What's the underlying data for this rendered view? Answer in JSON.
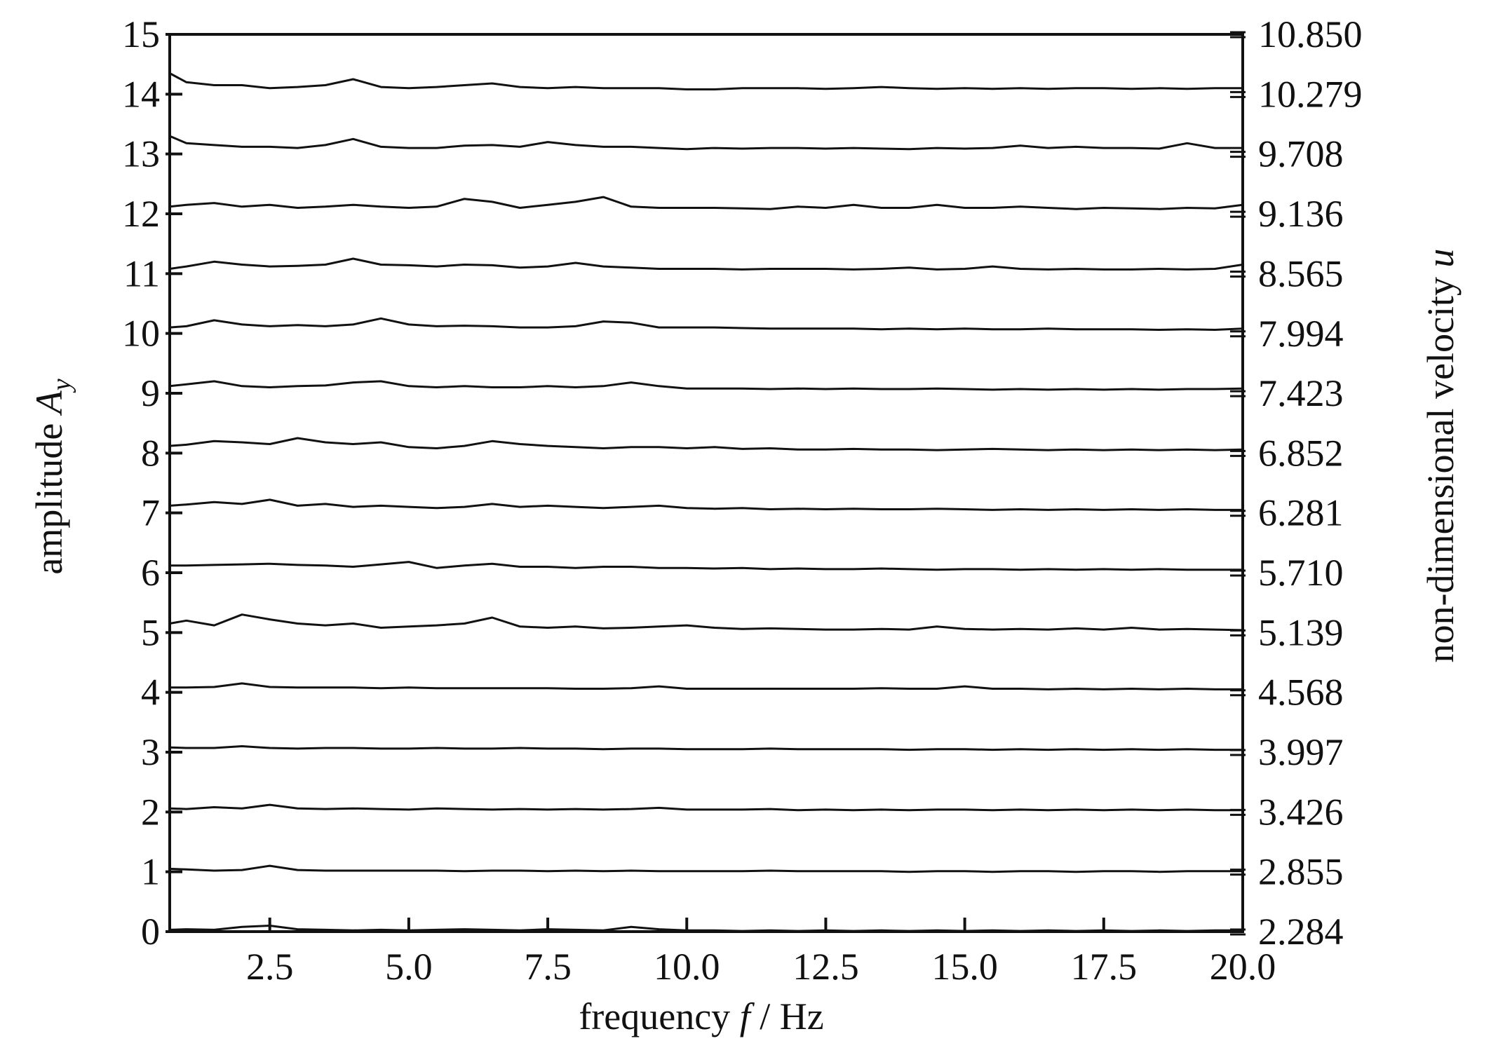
{
  "chart_data": {
    "type": "line",
    "x_label": {
      "text": "frequency ",
      "symbol": "f",
      "unit": " / Hz"
    },
    "y_label": {
      "text": "amplitude ",
      "symbol": "A",
      "subscript": "y"
    },
    "y2_label": {
      "text": "non-dimensional velocity ",
      "symbol": "u"
    },
    "x": [
      0.7,
      1.0,
      1.5,
      2.0,
      2.5,
      3.0,
      3.5,
      4.0,
      4.5,
      5.0,
      5.5,
      6.0,
      6.5,
      7.0,
      7.5,
      8.0,
      8.5,
      9.0,
      9.5,
      10.0,
      10.5,
      11.0,
      11.5,
      12.0,
      12.5,
      13.0,
      13.5,
      14.0,
      14.5,
      15.0,
      15.5,
      16.0,
      16.5,
      17.0,
      17.5,
      18.0,
      18.5,
      19.0,
      19.5,
      20.0
    ],
    "xlim": [
      0.7,
      20
    ],
    "xticks": [
      2.5,
      {
        "value": 5,
        "label": "5.0"
      },
      7.5,
      {
        "value": 10,
        "label": "10.0"
      },
      12.5,
      {
        "value": 15,
        "label": "15.0"
      },
      17.5,
      {
        "value": 20,
        "label": "20.0"
      }
    ],
    "ylim": [
      0,
      15
    ],
    "yticks": [
      0,
      1,
      2,
      3,
      4,
      5,
      6,
      7,
      8,
      9,
      10,
      11,
      12,
      13,
      14,
      15
    ],
    "y2lim": [
      2.284,
      {
        "value": 10.85,
        "label": "10.850"
      }
    ],
    "y2ticks": [
      2.284,
      2.855,
      3.426,
      3.997,
      4.568,
      5.139,
      {
        "value": 5.71,
        "label": "5.710"
      },
      6.281,
      6.852,
      7.423,
      7.994,
      8.565,
      9.136,
      9.708,
      10.279,
      {
        "value": 10.85,
        "label": "10.850"
      }
    ],
    "series": [
      {
        "color": "#111111",
        "values": [
          0.03,
          0.04,
          0.03,
          0.08,
          0.1,
          0.04,
          0.03,
          0.02,
          0.03,
          0.02,
          0.03,
          0.04,
          0.03,
          0.02,
          0.04,
          0.03,
          0.02,
          0.08,
          0.04,
          0.02,
          0.02,
          0.01,
          0.02,
          0.01,
          0.02,
          0.01,
          0.02,
          0.01,
          0.02,
          0.01,
          0.02,
          0.01,
          0.02,
          0.01,
          0.02,
          0.01,
          0.02,
          0.01,
          0.02,
          0.02
        ]
      },
      {
        "color": "#111111",
        "values": [
          1.05,
          1.04,
          1.02,
          1.03,
          1.1,
          1.03,
          1.02,
          1.02,
          1.02,
          1.02,
          1.02,
          1.01,
          1.02,
          1.02,
          1.01,
          1.02,
          1.01,
          1.02,
          1.01,
          1.01,
          1.01,
          1.01,
          1.02,
          1.01,
          1.01,
          1.01,
          1.01,
          1.0,
          1.01,
          1.01,
          1.0,
          1.01,
          1.01,
          1.0,
          1.01,
          1.01,
          1.0,
          1.01,
          1.01,
          1.01
        ]
      },
      {
        "color": "#111111",
        "values": [
          2.06,
          2.05,
          2.08,
          2.06,
          2.12,
          2.06,
          2.05,
          2.06,
          2.05,
          2.04,
          2.06,
          2.05,
          2.04,
          2.05,
          2.04,
          2.05,
          2.04,
          2.05,
          2.07,
          2.04,
          2.04,
          2.04,
          2.05,
          2.03,
          2.04,
          2.03,
          2.04,
          2.03,
          2.04,
          2.04,
          2.03,
          2.04,
          2.03,
          2.04,
          2.03,
          2.04,
          2.03,
          2.04,
          2.03,
          2.03
        ]
      },
      {
        "color": "#111111",
        "values": [
          3.08,
          3.07,
          3.07,
          3.1,
          3.07,
          3.06,
          3.07,
          3.07,
          3.06,
          3.06,
          3.07,
          3.06,
          3.06,
          3.07,
          3.06,
          3.06,
          3.05,
          3.06,
          3.06,
          3.05,
          3.05,
          3.05,
          3.06,
          3.05,
          3.05,
          3.05,
          3.05,
          3.04,
          3.05,
          3.05,
          3.04,
          3.05,
          3.04,
          3.05,
          3.04,
          3.05,
          3.04,
          3.05,
          3.04,
          3.04
        ]
      },
      {
        "color": "#111111",
        "values": [
          4.08,
          4.08,
          4.09,
          4.15,
          4.09,
          4.08,
          4.08,
          4.08,
          4.07,
          4.08,
          4.07,
          4.07,
          4.07,
          4.07,
          4.07,
          4.06,
          4.06,
          4.07,
          4.1,
          4.06,
          4.06,
          4.06,
          4.06,
          4.06,
          4.06,
          4.06,
          4.07,
          4.06,
          4.06,
          4.1,
          4.06,
          4.06,
          4.05,
          4.06,
          4.05,
          4.06,
          4.05,
          4.06,
          4.05,
          4.05
        ]
      },
      {
        "color": "#111111",
        "values": [
          5.15,
          5.2,
          5.12,
          5.3,
          5.22,
          5.15,
          5.12,
          5.15,
          5.08,
          5.1,
          5.12,
          5.15,
          5.25,
          5.1,
          5.08,
          5.1,
          5.07,
          5.08,
          5.1,
          5.12,
          5.08,
          5.06,
          5.07,
          5.06,
          5.05,
          5.05,
          5.06,
          5.05,
          5.1,
          5.06,
          5.05,
          5.06,
          5.05,
          5.07,
          5.05,
          5.08,
          5.05,
          5.06,
          5.05,
          5.04
        ]
      },
      {
        "color": "#111111",
        "values": [
          6.12,
          6.12,
          6.13,
          6.14,
          6.15,
          6.13,
          6.12,
          6.1,
          6.14,
          6.18,
          6.08,
          6.12,
          6.15,
          6.1,
          6.1,
          6.08,
          6.1,
          6.1,
          6.08,
          6.08,
          6.07,
          6.08,
          6.06,
          6.07,
          6.06,
          6.06,
          6.07,
          6.06,
          6.05,
          6.06,
          6.06,
          6.05,
          6.06,
          6.05,
          6.06,
          6.05,
          6.06,
          6.05,
          6.05,
          6.05
        ]
      },
      {
        "color": "#111111",
        "values": [
          7.12,
          7.14,
          7.18,
          7.15,
          7.22,
          7.12,
          7.15,
          7.1,
          7.12,
          7.1,
          7.08,
          7.1,
          7.15,
          7.1,
          7.12,
          7.1,
          7.08,
          7.1,
          7.12,
          7.08,
          7.07,
          7.08,
          7.06,
          7.07,
          7.06,
          7.07,
          7.06,
          7.06,
          7.07,
          7.06,
          7.05,
          7.06,
          7.05,
          7.06,
          7.05,
          7.06,
          7.05,
          7.06,
          7.05,
          7.05
        ]
      },
      {
        "color": "#111111",
        "values": [
          8.12,
          8.14,
          8.2,
          8.18,
          8.15,
          8.25,
          8.18,
          8.15,
          8.18,
          8.1,
          8.08,
          8.12,
          8.2,
          8.15,
          8.12,
          8.1,
          8.08,
          8.1,
          8.1,
          8.08,
          8.1,
          8.07,
          8.08,
          8.06,
          8.06,
          8.07,
          8.06,
          8.06,
          8.05,
          8.06,
          8.07,
          8.06,
          8.05,
          8.06,
          8.05,
          8.06,
          8.05,
          8.06,
          8.05,
          8.06
        ]
      },
      {
        "color": "#111111",
        "values": [
          9.12,
          9.15,
          9.2,
          9.12,
          9.1,
          9.12,
          9.13,
          9.18,
          9.2,
          9.12,
          9.1,
          9.12,
          9.1,
          9.1,
          9.12,
          9.1,
          9.12,
          9.18,
          9.12,
          9.08,
          9.08,
          9.08,
          9.07,
          9.08,
          9.07,
          9.08,
          9.07,
          9.07,
          9.08,
          9.07,
          9.06,
          9.07,
          9.06,
          9.07,
          9.06,
          9.07,
          9.06,
          9.07,
          9.07,
          9.08
        ]
      },
      {
        "color": "#111111",
        "values": [
          10.1,
          10.12,
          10.22,
          10.15,
          10.12,
          10.14,
          10.12,
          10.15,
          10.25,
          10.15,
          10.12,
          10.13,
          10.12,
          10.1,
          10.1,
          10.12,
          10.2,
          10.18,
          10.1,
          10.1,
          10.1,
          10.09,
          10.08,
          10.08,
          10.08,
          10.08,
          10.07,
          10.08,
          10.07,
          10.08,
          10.07,
          10.07,
          10.08,
          10.07,
          10.07,
          10.07,
          10.06,
          10.07,
          10.06,
          10.08
        ]
      },
      {
        "color": "#111111",
        "values": [
          11.08,
          11.12,
          11.2,
          11.15,
          11.12,
          11.13,
          11.15,
          11.25,
          11.15,
          11.14,
          11.12,
          11.15,
          11.14,
          11.1,
          11.12,
          11.18,
          11.12,
          11.1,
          11.08,
          11.08,
          11.08,
          11.07,
          11.08,
          11.08,
          11.08,
          11.07,
          11.08,
          11.1,
          11.07,
          11.08,
          11.12,
          11.08,
          11.07,
          11.08,
          11.07,
          11.07,
          11.08,
          11.07,
          11.08,
          11.15
        ]
      },
      {
        "color": "#111111",
        "values": [
          12.12,
          12.15,
          12.18,
          12.12,
          12.15,
          12.1,
          12.12,
          12.15,
          12.12,
          12.1,
          12.12,
          12.25,
          12.2,
          12.1,
          12.15,
          12.2,
          12.28,
          12.12,
          12.1,
          12.1,
          12.1,
          12.09,
          12.08,
          12.12,
          12.1,
          12.15,
          12.1,
          12.1,
          12.15,
          12.1,
          12.1,
          12.12,
          12.1,
          12.08,
          12.1,
          12.09,
          12.08,
          12.1,
          12.09,
          12.15
        ]
      },
      {
        "color": "#111111",
        "values": [
          13.3,
          13.18,
          13.15,
          13.12,
          13.12,
          13.1,
          13.15,
          13.25,
          13.12,
          13.1,
          13.1,
          13.14,
          13.15,
          13.12,
          13.2,
          13.15,
          13.12,
          13.12,
          13.1,
          13.08,
          13.1,
          13.09,
          13.1,
          13.1,
          13.09,
          13.1,
          13.09,
          13.08,
          13.1,
          13.09,
          13.1,
          13.14,
          13.1,
          13.12,
          13.1,
          13.1,
          13.09,
          13.18,
          13.1,
          13.1
        ]
      },
      {
        "color": "#111111",
        "values": [
          14.35,
          14.2,
          14.15,
          14.15,
          14.1,
          14.12,
          14.15,
          14.25,
          14.12,
          14.1,
          14.12,
          14.15,
          14.18,
          14.12,
          14.1,
          14.12,
          14.1,
          14.1,
          14.1,
          14.08,
          14.08,
          14.1,
          14.1,
          14.1,
          14.09,
          14.1,
          14.12,
          14.1,
          14.09,
          14.1,
          14.09,
          14.1,
          14.09,
          14.1,
          14.1,
          14.09,
          14.1,
          14.09,
          14.1,
          14.1
        ]
      }
    ]
  }
}
